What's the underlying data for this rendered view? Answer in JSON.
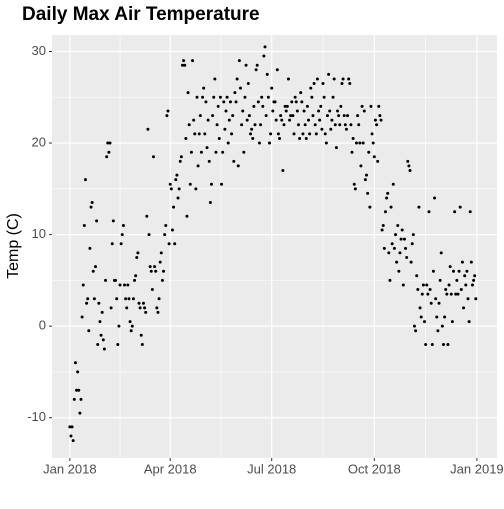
{
  "chart_data": {
    "type": "scatter",
    "title": "Daily Max Air Temperature",
    "y_label": "Temp (C)",
    "x": [
      0,
      1,
      2,
      3,
      4,
      5,
      6,
      7,
      8,
      9,
      10,
      11,
      12,
      13,
      14,
      15,
      16,
      17,
      18,
      19,
      20,
      21,
      22,
      23,
      24,
      25,
      26,
      27,
      28,
      29,
      30,
      31,
      32,
      33,
      34,
      35,
      36,
      37,
      38,
      39,
      40,
      41,
      42,
      43,
      44,
      45,
      46,
      47,
      48,
      49,
      50,
      51,
      52,
      53,
      54,
      55,
      56,
      57,
      58,
      59,
      60,
      61,
      62,
      63,
      64,
      65,
      66,
      67,
      68,
      69,
      70,
      71,
      72,
      73,
      74,
      75,
      76,
      77,
      78,
      79,
      80,
      81,
      82,
      83,
      84,
      85,
      86,
      87,
      88,
      89,
      90,
      91,
      92,
      93,
      94,
      95,
      96,
      97,
      98,
      99,
      100,
      101,
      102,
      103,
      104,
      105,
      106,
      107,
      108,
      109,
      110,
      111,
      112,
      113,
      114,
      115,
      116,
      117,
      118,
      119,
      120,
      121,
      122,
      123,
      124,
      125,
      126,
      127,
      128,
      129,
      130,
      131,
      132,
      133,
      134,
      135,
      136,
      137,
      138,
      139,
      140,
      141,
      142,
      143,
      144,
      145,
      146,
      147,
      148,
      149,
      150,
      151,
      152,
      153,
      154,
      155,
      156,
      157,
      158,
      159,
      160,
      161,
      162,
      163,
      164,
      165,
      166,
      167,
      168,
      169,
      170,
      171,
      172,
      173,
      174,
      175,
      176,
      177,
      178,
      179,
      180,
      181,
      182,
      183,
      184,
      185,
      186,
      187,
      188,
      189,
      190,
      191,
      192,
      193,
      194,
      195,
      196,
      197,
      198,
      199,
      200,
      201,
      202,
      203,
      204,
      205,
      206,
      207,
      208,
      209,
      210,
      211,
      212,
      213,
      214,
      215,
      216,
      217,
      218,
      219,
      220,
      221,
      222,
      223,
      224,
      225,
      226,
      227,
      228,
      229,
      230,
      231,
      232,
      233,
      234,
      235,
      236,
      237,
      238,
      239,
      240,
      241,
      242,
      243,
      244,
      245,
      246,
      247,
      248,
      249,
      250,
      251,
      252,
      253,
      254,
      255,
      256,
      257,
      258,
      259,
      260,
      261,
      262,
      263,
      264,
      265,
      266,
      267,
      268,
      269,
      270,
      271,
      272,
      273,
      274,
      275,
      276,
      277,
      278,
      279,
      280,
      281,
      282,
      283,
      284,
      285,
      286,
      287,
      288,
      289,
      290,
      291,
      292,
      293,
      294,
      295,
      296,
      297,
      298,
      299,
      300,
      301,
      302,
      303,
      304,
      305,
      306,
      307,
      308,
      309,
      310,
      311,
      312,
      313,
      314,
      315,
      316,
      317,
      318,
      319,
      320,
      321,
      322,
      323,
      324,
      325,
      326,
      327,
      328,
      329,
      330,
      331,
      332,
      333,
      334,
      335,
      336,
      337,
      338,
      339,
      340,
      341,
      342,
      343,
      344,
      345,
      346,
      347,
      348,
      349,
      350,
      351,
      352,
      353,
      354,
      355,
      356,
      357,
      358,
      359,
      360,
      361,
      362,
      363,
      364
    ],
    "values": [
      -11,
      -12,
      -11,
      -12.5,
      -8,
      -4,
      -7,
      -5,
      -7,
      -9.5,
      -8,
      1,
      4.5,
      11,
      16,
      2.5,
      3,
      -0.5,
      8.5,
      13,
      13.5,
      6,
      3,
      6.5,
      11.5,
      -2,
      2.5,
      0.5,
      -1,
      1.5,
      -1.5,
      -2.5,
      5,
      18.5,
      20,
      19,
      20,
      2,
      9,
      11.5,
      5,
      5,
      3,
      -2,
      0,
      4.5,
      9,
      10,
      11,
      4.5,
      3,
      2,
      4.5,
      3,
      0.5,
      -0.5,
      0,
      3,
      5,
      5.5,
      7.5,
      8,
      2.5,
      2,
      -1,
      -2,
      2.5,
      2,
      1.5,
      12,
      21.5,
      10,
      6.5,
      6,
      4,
      18.5,
      6.5,
      6,
      2,
      1.5,
      3,
      7,
      8,
      5,
      6,
      10,
      11,
      23,
      23.5,
      9,
      15.5,
      15,
      10.5,
      13,
      9,
      16,
      16.5,
      14,
      15,
      18,
      18.5,
      28.5,
      29,
      28.5,
      20.5,
      12,
      25.5,
      22,
      15.5,
      19,
      29,
      22.5,
      21,
      15,
      25,
      17.5,
      21,
      23,
      19,
      25,
      26,
      21,
      24.5,
      19.5,
      22.5,
      18,
      13.5,
      15.5,
      23,
      25,
      27,
      19,
      22,
      24,
      20.5,
      25,
      15.5,
      19,
      24.5,
      21.5,
      23.5,
      25,
      20,
      22.5,
      24.5,
      21,
      23,
      18,
      25.5,
      24.5,
      27,
      17.5,
      29,
      26,
      22,
      23.5,
      19,
      25,
      28.5,
      22.5,
      26.5,
      23,
      21,
      21.5,
      20.5,
      24,
      22,
      28,
      28.5,
      24.5,
      20,
      22,
      25,
      24,
      29.5,
      30.5,
      23,
      27.5,
      25,
      20,
      21,
      26,
      23.5,
      24.5,
      24.5,
      22.5,
      28,
      21,
      20.5,
      23,
      22.5,
      17,
      22,
      24,
      23.5,
      24,
      27,
      22.5,
      23,
      24.5,
      23,
      21,
      25,
      24.5,
      23.5,
      22,
      20.5,
      25.5,
      24.5,
      21,
      23.5,
      22,
      20.5,
      24,
      22.5,
      21,
      26,
      25,
      23,
      26.5,
      22,
      21,
      27,
      23.5,
      22.5,
      24,
      21.5,
      26.5,
      25,
      21,
      20,
      23,
      27.5,
      23.5,
      21.5,
      22.5,
      25,
      27,
      22,
      19.5,
      23.5,
      23,
      22,
      24,
      26.5,
      27,
      23,
      22,
      21.5,
      23,
      27,
      26.5,
      22,
      19,
      20.5,
      15.5,
      15,
      20,
      23,
      22,
      20,
      17.5,
      24,
      20,
      23.5,
      16,
      16.5,
      14.5,
      19,
      13,
      24,
      21,
      20,
      18.5,
      22.5,
      22,
      18,
      24,
      23,
      22.5,
      10.5,
      11,
      8.5,
      12.5,
      14,
      14.5,
      8,
      5,
      13,
      9,
      15.5,
      8.5,
      10,
      7,
      11,
      6,
      8,
      9.5,
      10.5,
      4.5,
      9.5,
      8.5,
      7.5,
      18,
      17.5,
      17,
      7,
      9,
      10,
      0,
      -0.5,
      5.5,
      4,
      13,
      2,
      1,
      3.5,
      4.5,
      0.5,
      -2,
      4.5,
      3.5,
      12.5,
      4,
      2.5,
      -2,
      6,
      14,
      3,
      1,
      -0.5,
      2.5,
      5,
      8,
      0,
      -2,
      1,
      4,
      3.5,
      -2,
      4.5,
      6.5,
      3.5,
      0.5,
      6,
      12.5,
      3.5,
      5,
      3.5,
      6,
      13,
      4,
      7,
      2,
      5.5,
      4.5,
      6,
      3,
      0.5,
      12.5,
      7,
      4.5,
      5,
      5.5,
      3
    ],
    "color": "#000000",
    "xlim": [
      -16,
      383
    ],
    "xticks": [
      {
        "value": 0,
        "label": "Jan 2018"
      },
      {
        "value": 90,
        "label": "Apr 2018"
      },
      {
        "value": 181,
        "label": "Jul 2018"
      },
      {
        "value": 273,
        "label": "Oct 2018"
      },
      {
        "value": 365,
        "label": "Jan 2019"
      }
    ],
    "ylim": [
      -14.4,
      31.8
    ],
    "yticks": [
      -10,
      0,
      10,
      20,
      30
    ],
    "grid": true
  }
}
